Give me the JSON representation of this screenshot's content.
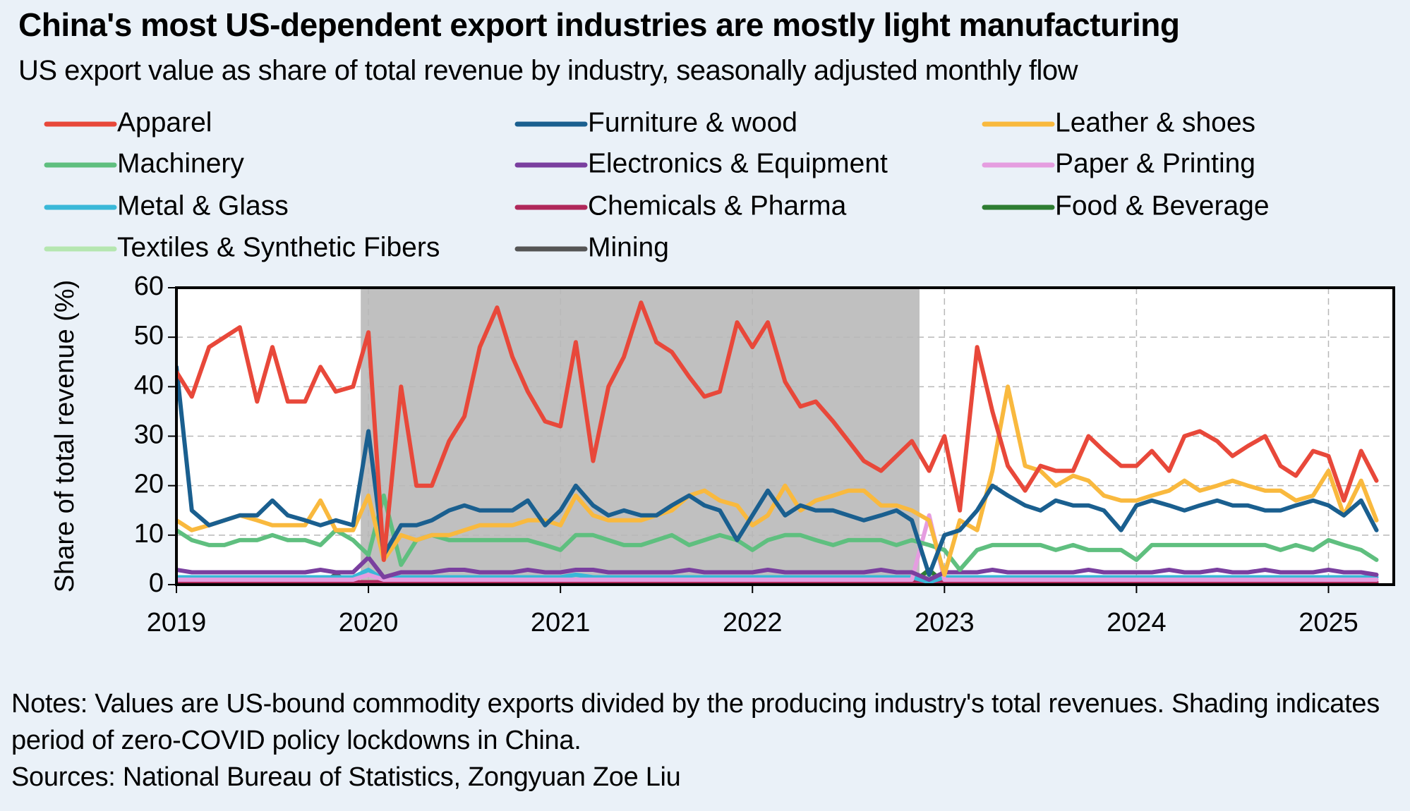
{
  "chart_data": {
    "type": "line",
    "title": "China's most US-dependent export industries are mostly light manufacturing",
    "subtitle": "US export value as share of total revenue by industry, seasonally adjusted monthly flow",
    "y_label": "Share of total revenue (%)",
    "notes": [
      "Notes: Values are US-bound commodity exports divided by the producing industry's total revenues. Shading indicates period of zero-COVID policy lockdowns in China.",
      "Sources: National Bureau of Statistics, Zongyuan Zoe Liu"
    ],
    "shading": [
      2019.96,
      2022.87
    ],
    "shading_color": "#c0c0c0",
    "xlim": [
      2019,
      2025.34
    ],
    "xticks": [
      2019,
      2020,
      2021,
      2022,
      2023,
      2024,
      2025
    ],
    "ylim": [
      0,
      60
    ],
    "yticks": [
      0,
      10,
      20,
      30,
      40,
      50,
      60
    ],
    "grid": true,
    "x": [
      2019,
      2019.08,
      2019.17,
      2019.25,
      2019.33,
      2019.42,
      2019.5,
      2019.58,
      2019.67,
      2019.75,
      2019.83,
      2019.92,
      2020,
      2020.08,
      2020.17,
      2020.25,
      2020.33,
      2020.42,
      2020.5,
      2020.58,
      2020.67,
      2020.75,
      2020.83,
      2020.92,
      2021,
      2021.08,
      2021.17,
      2021.25,
      2021.33,
      2021.42,
      2021.5,
      2021.58,
      2021.67,
      2021.75,
      2021.83,
      2021.92,
      2022,
      2022.08,
      2022.17,
      2022.25,
      2022.33,
      2022.42,
      2022.5,
      2022.58,
      2022.67,
      2022.75,
      2022.83,
      2022.92,
      2023,
      2023.08,
      2023.17,
      2023.25,
      2023.33,
      2023.42,
      2023.5,
      2023.58,
      2023.67,
      2023.75,
      2023.83,
      2023.92,
      2024,
      2024.08,
      2024.17,
      2024.25,
      2024.33,
      2024.42,
      2024.5,
      2024.58,
      2024.67,
      2024.75,
      2024.83,
      2024.92,
      2025,
      2025.08,
      2025.17,
      2025.25
    ],
    "series": [
      {
        "name": "Apparel",
        "color": "#e8483a",
        "values": [
          43,
          38,
          48,
          50,
          52,
          37,
          48,
          37,
          37,
          44,
          39,
          40,
          51,
          5,
          40,
          20,
          20,
          29,
          34,
          48,
          56,
          46,
          39,
          33,
          32,
          49,
          25,
          40,
          46,
          57,
          49,
          47,
          42,
          38,
          39,
          53,
          48,
          53,
          41,
          36,
          37,
          33,
          29,
          25,
          23,
          26,
          29,
          23,
          30,
          15,
          48,
          35,
          24,
          19,
          24,
          23,
          23,
          30,
          27,
          24,
          24,
          27,
          23,
          30,
          31,
          29,
          26,
          28,
          30,
          24,
          22,
          27,
          26,
          17,
          27,
          21
        ]
      },
      {
        "name": "Furniture & wood",
        "color": "#1a5f8f",
        "values": [
          44,
          15,
          12,
          13,
          14,
          14,
          17,
          14,
          13,
          12,
          13,
          12,
          31,
          6,
          12,
          12,
          13,
          15,
          16,
          15,
          15,
          15,
          17,
          12,
          15,
          20,
          16,
          14,
          15,
          14,
          14,
          16,
          18,
          16,
          15,
          9,
          14,
          19,
          14,
          16,
          15,
          15,
          14,
          13,
          14,
          15,
          13,
          2,
          10,
          11,
          15,
          20,
          18,
          16,
          15,
          17,
          16,
          16,
          15,
          11,
          16,
          17,
          16,
          15,
          16,
          17,
          16,
          16,
          15,
          15,
          16,
          17,
          16,
          14,
          17,
          11
        ]
      },
      {
        "name": "Leather & shoes",
        "color": "#f9b93e",
        "values": [
          13,
          11,
          12,
          13,
          14,
          13,
          12,
          12,
          12,
          17,
          11,
          11,
          18,
          5,
          10,
          9,
          10,
          10,
          11,
          12,
          12,
          12,
          13,
          13,
          12,
          18,
          14,
          13,
          13,
          13,
          14,
          15,
          18,
          19,
          17,
          16,
          12,
          14,
          20,
          15,
          17,
          18,
          19,
          19,
          16,
          16,
          15,
          13,
          2,
          13,
          11,
          23,
          40,
          24,
          23,
          20,
          22,
          21,
          18,
          17,
          17,
          18,
          19,
          21,
          19,
          20,
          21,
          20,
          19,
          19,
          17,
          18,
          23,
          14,
          21,
          13
        ]
      },
      {
        "name": "Machinery",
        "color": "#5fbf7f",
        "values": [
          11,
          9,
          8,
          8,
          9,
          9,
          10,
          9,
          9,
          8,
          11,
          9,
          6,
          18,
          4,
          9,
          10,
          9,
          9,
          9,
          9,
          9,
          9,
          8,
          7,
          10,
          10,
          9,
          8,
          8,
          9,
          10,
          8,
          9,
          10,
          9,
          7,
          9,
          10,
          10,
          9,
          8,
          9,
          9,
          9,
          8,
          9,
          8,
          7,
          3,
          7,
          8,
          8,
          8,
          8,
          7,
          8,
          7,
          7,
          7,
          5,
          8,
          8,
          8,
          8,
          8,
          8,
          8,
          8,
          7,
          8,
          7,
          9,
          8,
          7,
          5
        ]
      },
      {
        "name": "Electronics & Equipment",
        "color": "#7a3f9f",
        "values": [
          3,
          2.5,
          2.5,
          2.5,
          2.5,
          2.5,
          2.5,
          2.5,
          2.5,
          3,
          2.5,
          2.5,
          5.5,
          1.5,
          2.5,
          2.5,
          2.5,
          3,
          3,
          2.5,
          2.5,
          2.5,
          3,
          2.5,
          2.5,
          3,
          3,
          2.5,
          2.5,
          2.5,
          2.5,
          2.5,
          3,
          2.5,
          2.5,
          2.5,
          2.5,
          3,
          2.5,
          2.5,
          2.5,
          2.5,
          2.5,
          2.5,
          3,
          2.5,
          2.5,
          1,
          2.5,
          2.5,
          2.5,
          3,
          2.5,
          2.5,
          2.5,
          2.5,
          2.5,
          3,
          2.5,
          2.5,
          2.5,
          2.5,
          3,
          2.5,
          2.5,
          3,
          2.5,
          2.5,
          3,
          2.5,
          2.5,
          2.5,
          3,
          2.5,
          2.5,
          2
        ]
      },
      {
        "name": "Paper & Printing",
        "color": "#e59de0",
        "values": [
          1,
          1,
          1,
          1,
          1,
          1,
          1,
          1,
          1,
          1,
          1,
          1,
          2,
          1,
          1,
          1,
          1,
          1,
          1,
          1,
          1,
          1,
          1,
          1,
          1,
          1,
          1,
          1,
          1,
          1,
          1,
          1,
          1,
          1,
          1,
          1,
          1,
          1,
          1,
          1,
          1,
          1,
          1,
          1,
          1,
          1,
          1,
          14,
          1,
          1,
          1,
          1,
          1,
          1,
          1,
          1,
          1,
          1,
          1,
          1,
          1,
          1,
          1,
          1,
          1,
          1,
          1,
          1,
          1,
          1,
          1,
          1,
          1,
          1,
          1,
          1
        ]
      },
      {
        "name": "Metal & Glass",
        "color": "#3ab8d8",
        "values": [
          1.5,
          1.5,
          1.5,
          1.5,
          1.5,
          1.5,
          1.5,
          1.5,
          1.5,
          1.5,
          1.5,
          1.5,
          3,
          1,
          1.5,
          1.5,
          1.5,
          1.5,
          1.5,
          1.5,
          1.5,
          1.5,
          1.5,
          1.5,
          1.5,
          2,
          1.5,
          1.5,
          1.5,
          1.5,
          1.5,
          1.5,
          1.5,
          1.5,
          1.5,
          1.5,
          1.5,
          1.5,
          1.5,
          1.5,
          1.5,
          1.5,
          1.5,
          1.5,
          1.5,
          1.5,
          1.5,
          0.5,
          1.5,
          1.5,
          1.5,
          1.5,
          1.5,
          1.5,
          1.5,
          1.5,
          1.5,
          1.5,
          1.5,
          1.5,
          1.5,
          1.5,
          1.5,
          1.5,
          1.5,
          1.5,
          1.5,
          1.5,
          1.5,
          1.5,
          1.5,
          1.5,
          1.5,
          1.5,
          1.5,
          1.5
        ]
      },
      {
        "name": "Chemicals & Pharma",
        "color": "#b0285a",
        "values": [
          0.5,
          0.5,
          0.5,
          0.5,
          0.5,
          0.5,
          0.5,
          0.5,
          0.5,
          0.5,
          0.5,
          0.5,
          0.5,
          0.5,
          0.5,
          0.5,
          0.5,
          0.5,
          0.5,
          0.5,
          0.5,
          0.5,
          0.5,
          0.5,
          0.5,
          0.5,
          0.5,
          0.5,
          0.5,
          0.5,
          0.5,
          0.5,
          0.5,
          0.5,
          0.5,
          0.5,
          0.5,
          0.5,
          0.5,
          0.5,
          0.5,
          0.5,
          0.5,
          0.5,
          0.5,
          0.5,
          0.5,
          0.5,
          0.5,
          0.5,
          0.5,
          0.5,
          0.5,
          0.5,
          0.5,
          0.5,
          0.5,
          0.5,
          0.5,
          0.5,
          0.5,
          0.5,
          0.5,
          0.5,
          0.5,
          0.5,
          0.5,
          0.5,
          0.5,
          0.5,
          0.5,
          0.5,
          0.5,
          0.5,
          0.5,
          0.5
        ]
      },
      {
        "name": "Food & Beverage",
        "color": "#2e7d32",
        "values": [
          0.3,
          0.3,
          0.3,
          0.3,
          0.3,
          0.3,
          0.3,
          0.3,
          0.3,
          0.3,
          0.3,
          0.3,
          0.3,
          0.3,
          0.3,
          0.3,
          0.3,
          0.3,
          0.3,
          0.3,
          0.3,
          0.3,
          0.3,
          0.3,
          0.3,
          0.3,
          0.3,
          0.3,
          0.3,
          0.3,
          0.3,
          0.3,
          0.3,
          0.3,
          0.3,
          0.3,
          0.3,
          0.3,
          0.3,
          0.3,
          0.3,
          0.3,
          0.3,
          0.3,
          0.3,
          0.3,
          0.3,
          3,
          0.3,
          0.3,
          0.3,
          0.3,
          0.3,
          0.3,
          0.3,
          0.3,
          0.3,
          0.3,
          0.3,
          0.3,
          0.3,
          0.3,
          0.3,
          0.3,
          0.3,
          0.3,
          0.3,
          0.3,
          0.3,
          0.3,
          0.3,
          0.3,
          0.3,
          0.3,
          0.3,
          0.3
        ]
      },
      {
        "name": "Textiles & Synthetic Fibers",
        "color": "#b5e6b0",
        "values": [
          1,
          1,
          1,
          1,
          1,
          1,
          1,
          1,
          1,
          1,
          1,
          1,
          2.5,
          1,
          1,
          1,
          1,
          1,
          1,
          1,
          1,
          1,
          1,
          1,
          1,
          1,
          1,
          1,
          1,
          1,
          1,
          1,
          1,
          1,
          1,
          1,
          1,
          1,
          1,
          1,
          1,
          1,
          1,
          1,
          1,
          1,
          1,
          2,
          1,
          1,
          1,
          1,
          1,
          1,
          1,
          1,
          1,
          1,
          1,
          1,
          1,
          1,
          1,
          1,
          1,
          1,
          1,
          1,
          1,
          1,
          1,
          1,
          1,
          1,
          1,
          1
        ]
      },
      {
        "name": "Mining",
        "color": "#555555",
        "values": [
          0.3,
          0.3,
          0.3,
          0.3,
          0.3,
          0.3,
          0.3,
          0.3,
          0.3,
          0.3,
          2,
          0.3,
          0.3,
          0.3,
          0.3,
          0.3,
          0.3,
          0.3,
          0.3,
          0.3,
          0.3,
          0.3,
          0.3,
          0.3,
          0.3,
          0.3,
          0.3,
          0.3,
          0.3,
          0.3,
          0.3,
          0.3,
          0.3,
          0.3,
          0.3,
          0.3,
          0.3,
          0.3,
          0.3,
          0.3,
          0.3,
          0.3,
          0.3,
          0.3,
          0.3,
          0.3,
          0.3,
          0.3,
          0.3,
          0.3,
          0.3,
          0.3,
          0.3,
          0.3,
          0.3,
          0.3,
          0.3,
          0.3,
          0.3,
          0.3,
          0.3,
          0.3,
          0.3,
          0.3,
          0.3,
          0.3,
          0.3,
          0.3,
          0.3,
          0.3,
          0.3,
          0.3,
          0.3,
          0.3,
          0.3,
          0.3
        ]
      }
    ]
  }
}
